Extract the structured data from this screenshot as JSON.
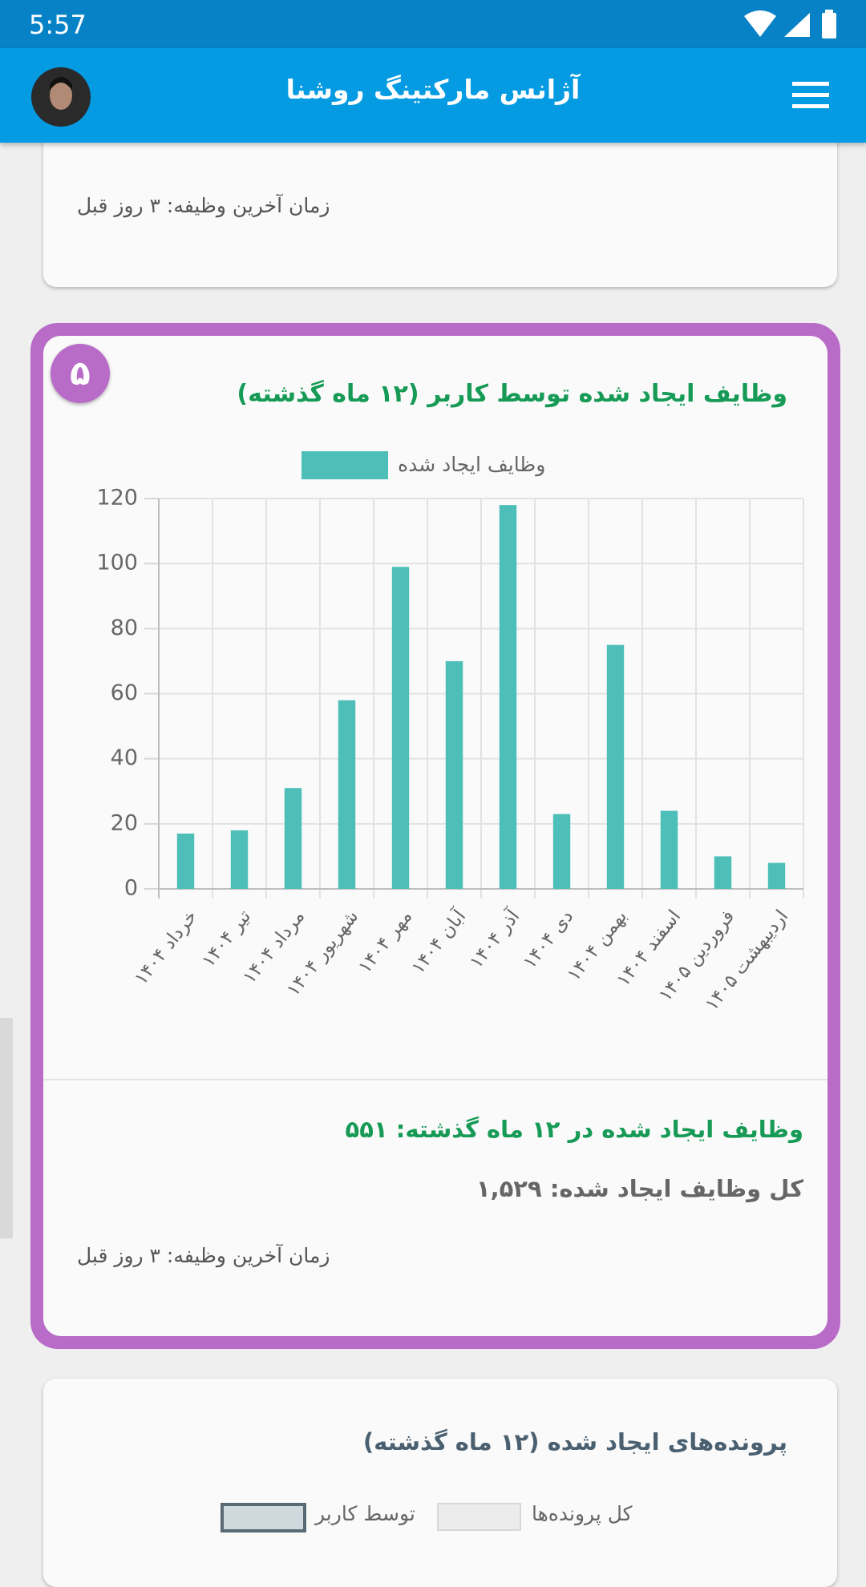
{
  "status_bar": {
    "time": "5:57"
  },
  "app_bar": {
    "title": "آژانس مارکتینگ روشنا"
  },
  "cards": [
    {
      "last_task": "زمان آخرین وظیفه: ۳ روز قبل"
    },
    {
      "badge": "۵",
      "summary_recent": "وظایف ایجاد شده در ۱۲ ماه گذشته: ۵۵۱",
      "summary_total": "کل وظایف ایجاد شده: ۱,۵۲۹",
      "last_task": "زمان آخرین وظیفه: ۳ روز قبل"
    },
    {
      "title": "پرونده‌های ایجاد شده (۱۲ ماه گذشته)",
      "legend": [
        "کل پرونده‌ها",
        "توسط کاربر"
      ]
    }
  ],
  "chart_data": {
    "type": "bar",
    "title": "وظایف ایجاد شده توسط کاربر (۱۲ ماه گذشته)",
    "categories": [
      "خرداد ۱۴۰۴",
      "تیر ۱۴۰۴",
      "مرداد ۱۴۰۴",
      "شهریور ۱۴۰۴",
      "مهر ۱۴۰۴",
      "آبان ۱۴۰۴",
      "آذر ۱۴۰۴",
      "دی ۱۴۰۴",
      "بهمن ۱۴۰۴",
      "اسفند ۱۴۰۴",
      "فروردین ۱۴۰۵",
      "اردیبهشت ۱۴۰۵"
    ],
    "series": [
      {
        "name": "وظایف ایجاد شده",
        "color": "#4dbfb8",
        "values": [
          17,
          18,
          31,
          58,
          99,
          70,
          118,
          23,
          75,
          24,
          10,
          8
        ]
      }
    ],
    "ylim": [
      0,
      120
    ],
    "yticks": [
      0,
      20,
      40,
      60,
      80,
      100,
      120
    ],
    "grid": true
  }
}
